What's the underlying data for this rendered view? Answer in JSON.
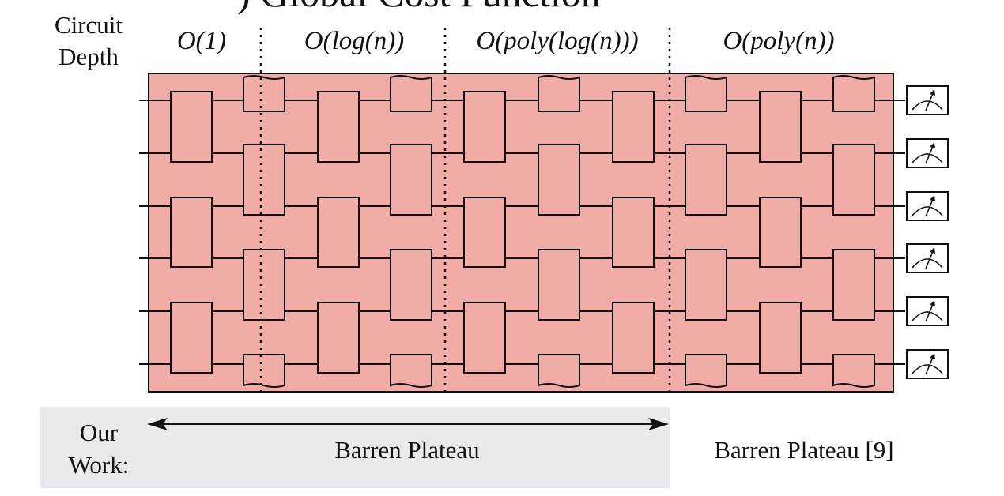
{
  "title": ") Global Cost Function",
  "depth_label": {
    "line1": "Circuit",
    "line2": "Depth"
  },
  "depth_regimes": [
    {
      "label": "O(1)"
    },
    {
      "label": "O(log(n))"
    },
    {
      "label": "O(poly(log(n)))"
    },
    {
      "label": "O(poly(n))"
    }
  ],
  "our_work": {
    "line1": "Our",
    "line2": "Work:"
  },
  "plateau_ours": "Barren Plateau",
  "plateau_prior": "Barren Plateau [9]",
  "circuit": {
    "qubits": 6,
    "layers": 10
  },
  "colors": {
    "circuit_bg": "#F2ACA7",
    "our_work_text": "#9B1B1B",
    "our_work_bg": "#E9EAEE",
    "ink": "#111111"
  }
}
